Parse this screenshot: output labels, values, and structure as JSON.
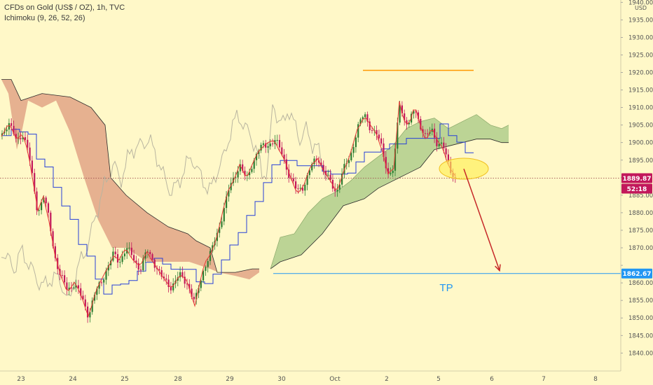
{
  "header": {
    "title": "CFDs on Gold (US$ / OZ), 1h, TVC",
    "indicator": "Ichimoku (9, 26, 52, 26)",
    "currency": "USD"
  },
  "price_badges": {
    "last_price": "1889.87",
    "countdown": "52:18",
    "target_price": "1862.67"
  },
  "annotations": {
    "tp_label": "TP"
  },
  "colors": {
    "background": "#fff8c8",
    "bull": "#2e7d32",
    "bear": "#c2185b",
    "conversion": "#e53935",
    "base": "#2740d8",
    "lagging": "#b9b5a0",
    "cloud_bull": "#b5cf8f",
    "cloud_bear": "#e3a98a",
    "resistance": "#ff9800",
    "target": "#2196f3",
    "arrow": "#c62828"
  },
  "chart_data": {
    "type": "candlestick",
    "title": "CFDs on Gold (US$ / OZ), 1h, TVC",
    "indicator": "Ichimoku (9, 26, 52, 26)",
    "y_unit": "USD",
    "ylim": [
      1837.5,
      1940
    ],
    "y_ticks": [
      "1840.00",
      "1845.00",
      "1850.00",
      "1855.00",
      "1860.00",
      "1865.00",
      "1870.00",
      "1875.00",
      "1880.00",
      "1885.00",
      "1890.00",
      "1895.00",
      "1900.00",
      "1905.00",
      "1910.00",
      "1915.00",
      "1920.00",
      "1925.00",
      "1930.00",
      "1935.00",
      "1940.00"
    ],
    "x_ticks": [
      "23",
      "24",
      "25",
      "28",
      "29",
      "30",
      "Oct",
      "2",
      "5",
      "6",
      "7",
      "8"
    ],
    "last_price": 1889.87,
    "resistance_level": 1920.6,
    "target_level": 1862.67,
    "target_label": "TP",
    "projected_move": {
      "from": 1892.5,
      "to": 1863.5
    },
    "grid": false
  }
}
